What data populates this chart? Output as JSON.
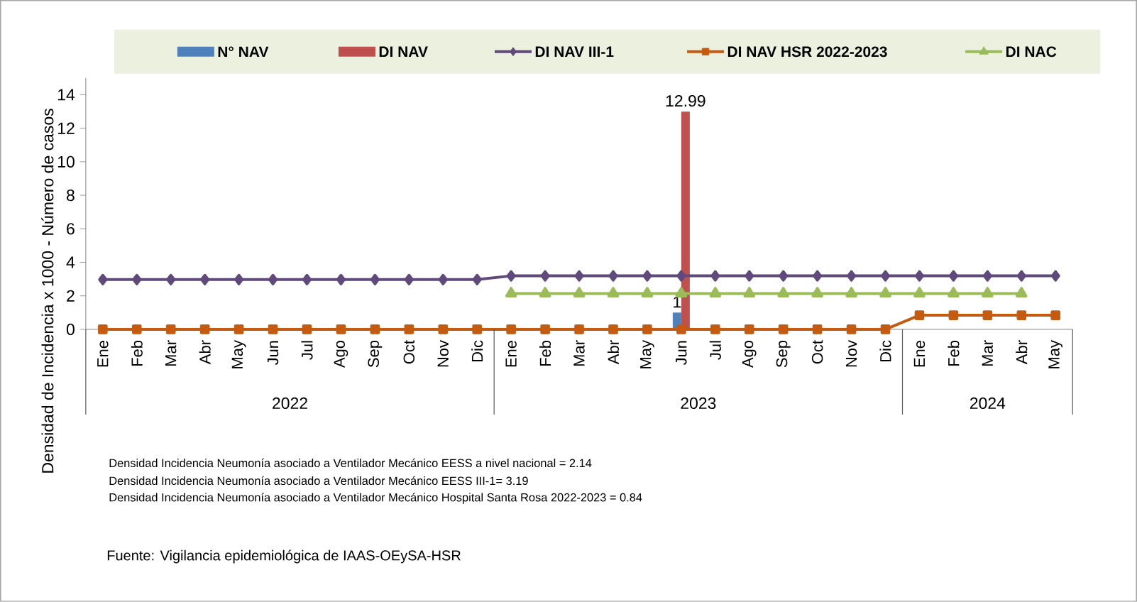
{
  "chart_data": {
    "type": "bar",
    "ylabel": "Densidad de Incidencia x 1000 - Número de casos",
    "categories": [
      "Ene",
      "Feb",
      "Mar",
      "Abr",
      "May",
      "Jun",
      "Jul",
      "Ago",
      "Sep",
      "Oct",
      "Nov",
      "Dic",
      "Ene",
      "Feb",
      "Mar",
      "Abr",
      "May",
      "Jun",
      "Jul",
      "Ago",
      "Sep",
      "Oct",
      "Nov",
      "Dic",
      "Ene",
      "Feb",
      "Mar",
      "Abr",
      "May"
    ],
    "series": [
      {
        "name": "N° NAV",
        "color": "#4f81bd",
        "values": [
          null,
          null,
          null,
          null,
          null,
          null,
          null,
          null,
          null,
          null,
          null,
          null,
          null,
          null,
          null,
          null,
          null,
          1,
          null,
          null,
          null,
          null,
          null,
          null,
          null,
          null,
          null,
          null,
          null
        ],
        "value_labels": [
          null,
          null,
          null,
          null,
          null,
          null,
          null,
          null,
          null,
          null,
          null,
          null,
          null,
          null,
          null,
          null,
          null,
          "1",
          null,
          null,
          null,
          null,
          null,
          null,
          null,
          null,
          null,
          null,
          null
        ]
      },
      {
        "name": "DI NAV",
        "color": "#c0504d",
        "values": [
          null,
          null,
          null,
          null,
          null,
          null,
          null,
          null,
          null,
          null,
          null,
          null,
          null,
          null,
          null,
          null,
          null,
          12.99,
          null,
          null,
          null,
          null,
          null,
          null,
          null,
          null,
          null,
          null,
          null
        ],
        "value_labels": [
          null,
          null,
          null,
          null,
          null,
          null,
          null,
          null,
          null,
          null,
          null,
          null,
          null,
          null,
          null,
          null,
          null,
          "12.99",
          null,
          null,
          null,
          null,
          null,
          null,
          null,
          null,
          null,
          null,
          null
        ]
      },
      {
        "name": "DI NAV III-1",
        "type": "line",
        "marker": "diamond",
        "color": "#604a7b",
        "values": [
          2.97,
          2.97,
          2.97,
          2.97,
          2.97,
          2.97,
          2.97,
          2.97,
          2.97,
          2.97,
          2.97,
          2.97,
          3.19,
          3.19,
          3.19,
          3.19,
          3.19,
          3.19,
          3.19,
          3.19,
          3.19,
          3.19,
          3.19,
          3.19,
          3.19,
          3.19,
          3.19,
          3.19,
          3.19
        ]
      },
      {
        "name": "DI NAV HSR 2022-2023",
        "type": "line",
        "marker": "square",
        "color": "#c55a11",
        "values": [
          0,
          0,
          0,
          0,
          0,
          0,
          0,
          0,
          0,
          0,
          0,
          0,
          0,
          0,
          0,
          0,
          0,
          0,
          0,
          0,
          0,
          0,
          0,
          0,
          0.84,
          0.84,
          0.84,
          0.84,
          0.84
        ]
      },
      {
        "name": "DI NAC",
        "type": "line",
        "marker": "triangle",
        "color": "#9bbb59",
        "values": [
          null,
          null,
          null,
          null,
          null,
          null,
          null,
          null,
          null,
          null,
          null,
          null,
          2.14,
          2.14,
          2.14,
          2.14,
          2.14,
          2.14,
          2.14,
          2.14,
          2.14,
          2.14,
          2.14,
          2.14,
          2.14,
          2.14,
          2.14,
          2.14,
          null
        ]
      }
    ],
    "ylim": [
      0,
      15
    ],
    "yticks": [
      0,
      2,
      4,
      6,
      8,
      10,
      12,
      14
    ],
    "legend": "top",
    "grid": false,
    "annotations": [
      "2022",
      "2023",
      "2024",
      "Densidad Incidencia Neumonía asociado a Ventilador Mecánico EESS a nivel nacional = 2.14",
      "Densidad Incidencia Neumonía asociado a Ventilador Mecánico EESS III-1= 3.19",
      "Densidad Incidencia Neumonía asociado a Ventilador Mecánico  Hospital Santa Rosa 2022-2023 = 0.84",
      "Fuente: Vigilancia epidemiológica de IAAS-OEySA-HSR"
    ]
  }
}
